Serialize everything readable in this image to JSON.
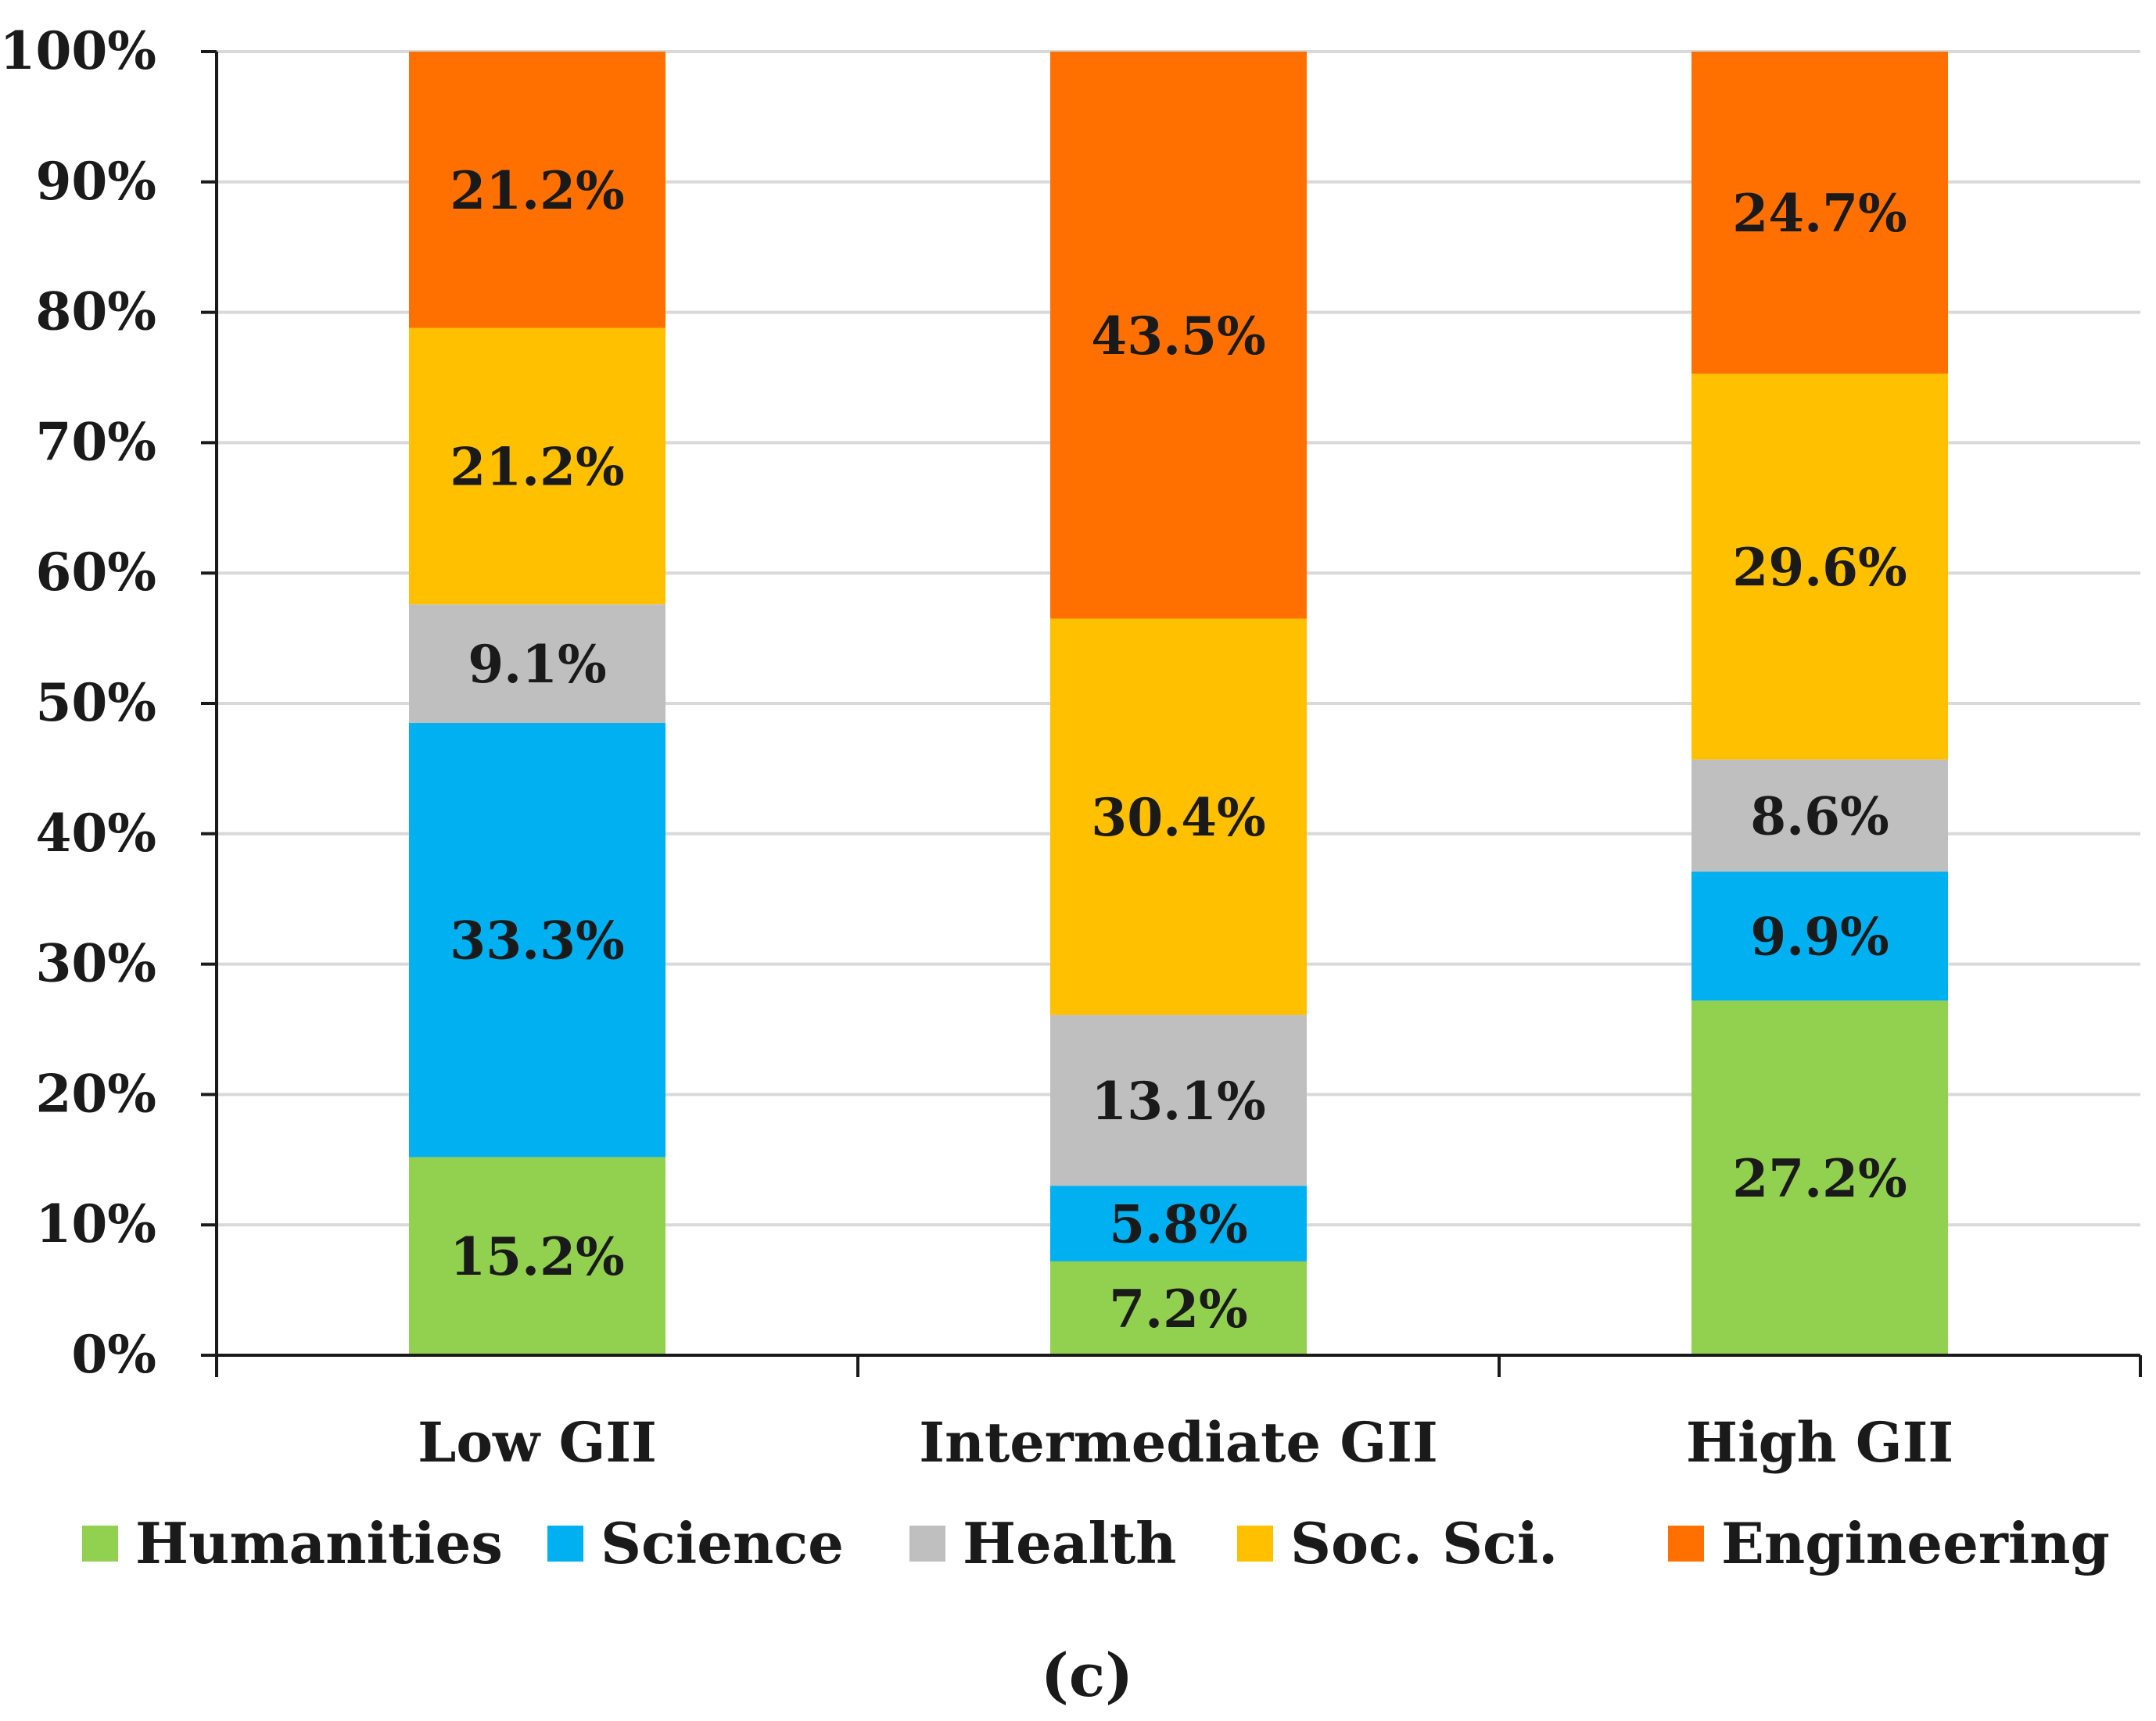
{
  "chart_data": {
    "type": "bar",
    "stacked": true,
    "percent": true,
    "categories": [
      "Low GII",
      "Intermediate GII",
      "High GII"
    ],
    "series": [
      {
        "name": "Humanities",
        "color": "#92d050",
        "values": [
          15.2,
          7.2,
          27.2
        ],
        "labels": [
          "15.2%",
          "7.2%",
          "27.2%"
        ]
      },
      {
        "name": "Science",
        "color": "#00b0f0",
        "values": [
          33.3,
          5.8,
          9.9
        ],
        "labels": [
          "33.3%",
          "5.8%",
          "9.9%"
        ]
      },
      {
        "name": "Health",
        "color": "#bfbfbf",
        "values": [
          9.1,
          13.1,
          8.6
        ],
        "labels": [
          "9.1%",
          "13.1%",
          "8.6%"
        ]
      },
      {
        "name": "Soc. Sci.",
        "color": "#ffc000",
        "values": [
          21.2,
          30.4,
          29.6
        ],
        "labels": [
          "21.2%",
          "30.4%",
          "29.6%"
        ]
      },
      {
        "name": "Engineering",
        "color": "#ff7000",
        "values": [
          21.2,
          43.5,
          24.7
        ],
        "labels": [
          "21.2%",
          "43.5%",
          "24.7%"
        ]
      }
    ],
    "ylim": [
      0,
      100
    ],
    "yticks": [
      "0%",
      "10%",
      "20%",
      "30%",
      "40%",
      "50%",
      "60%",
      "70%",
      "80%",
      "90%",
      "100%"
    ],
    "grid": true,
    "legend_position": "bottom",
    "xlabel": "",
    "ylabel": ""
  },
  "caption": "(c)"
}
